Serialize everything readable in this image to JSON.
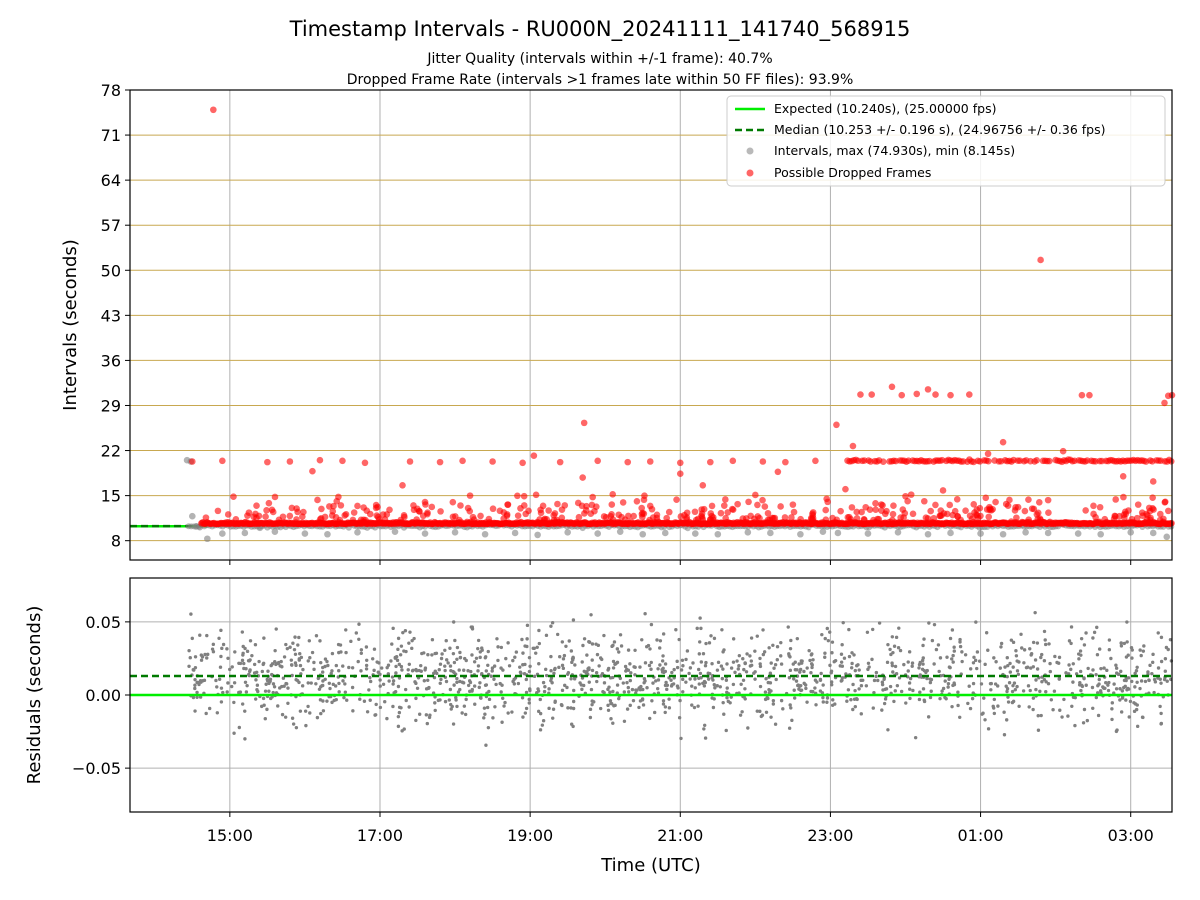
{
  "figure": {
    "title": "Timestamp Intervals - RU000N_20241111_141740_568915",
    "subtitle_1": "Jitter Quality (intervals within +/-1 frame): 40.7%",
    "subtitle_2": "Dropped Frame Rate (intervals >1 frames late within 50 FF files): 93.9%"
  },
  "colors": {
    "expected": "#00ee00",
    "median": "#007a00",
    "intervals": "#808080",
    "dropped": "#ff0000",
    "ygrid_top": "#c8a850",
    "xgrid": "#b0b0b0"
  },
  "chart_data": [
    {
      "type": "scatter",
      "name": "intervals",
      "xlabel": "",
      "ylabel": "Intervals (seconds)",
      "x_unit": "hours since 00:00 on the first day (UTC)",
      "xlim": [
        13.67,
        27.55
      ],
      "ylim": [
        5,
        78
      ],
      "yticks": [
        8,
        15,
        22,
        29,
        36,
        43,
        50,
        57,
        64,
        71,
        78
      ],
      "ytick_labels": [
        "8",
        "15",
        "22",
        "29",
        "36",
        "43",
        "50",
        "57",
        "64",
        "71",
        "78"
      ],
      "grid": true,
      "legend_position": "top-right",
      "expected_value": 10.24,
      "median_value": 10.253,
      "legend": {
        "expected": "Expected (10.240s), (25.00000 fps)",
        "median": "Median (10.253 +/- 0.196 s), (24.96756 +/- 0.36 fps)",
        "intervals": "Intervals, max (74.930s), min (8.145s)",
        "dropped": "Possible Dropped Frames"
      },
      "series": [
        {
          "name": "Intervals, max (74.930s), min (8.145s)",
          "points": [
            [
              14.43,
              20.5
            ],
            [
              14.48,
              20.3
            ],
            [
              14.5,
              11.8
            ],
            [
              14.55,
              10.2
            ],
            [
              14.6,
              10.1
            ],
            [
              14.7,
              8.3
            ],
            [
              14.9,
              9.1
            ],
            [
              15.2,
              9.2
            ],
            [
              15.4,
              10.0
            ],
            [
              15.6,
              9.4
            ],
            [
              16.0,
              9.1
            ],
            [
              16.3,
              9.0
            ],
            [
              16.7,
              9.3
            ],
            [
              17.2,
              9.4
            ],
            [
              17.6,
              9.1
            ],
            [
              18.0,
              9.3
            ],
            [
              18.4,
              9.0
            ],
            [
              18.8,
              9.2
            ],
            [
              19.1,
              8.9
            ],
            [
              19.5,
              9.3
            ],
            [
              19.9,
              9.1
            ],
            [
              20.2,
              9.4
            ],
            [
              20.5,
              9.0
            ],
            [
              20.8,
              9.2
            ],
            [
              21.2,
              9.1
            ],
            [
              21.5,
              9.0
            ],
            [
              21.9,
              9.3
            ],
            [
              22.2,
              9.2
            ],
            [
              22.6,
              9.0
            ],
            [
              22.9,
              9.4
            ],
            [
              23.1,
              9.2
            ],
            [
              23.5,
              9.1
            ],
            [
              23.9,
              9.3
            ],
            [
              24.3,
              9.0
            ],
            [
              24.6,
              9.2
            ],
            [
              25.0,
              9.1
            ],
            [
              25.3,
              9.0
            ],
            [
              25.6,
              9.3
            ],
            [
              25.9,
              9.2
            ],
            [
              26.3,
              9.1
            ],
            [
              26.6,
              9.0
            ],
            [
              27.0,
              9.3
            ],
            [
              27.3,
              9.2
            ],
            [
              27.48,
              8.6
            ]
          ]
        },
        {
          "name": "Possible Dropped Frames",
          "points": [
            [
              14.78,
              74.93
            ],
            [
              14.5,
              20.3
            ],
            [
              14.9,
              20.4
            ],
            [
              15.5,
              20.2
            ],
            [
              15.8,
              20.3
            ],
            [
              16.2,
              20.5
            ],
            [
              16.5,
              20.4
            ],
            [
              16.8,
              20.1
            ],
            [
              17.4,
              20.3
            ],
            [
              17.8,
              20.2
            ],
            [
              18.1,
              20.4
            ],
            [
              18.5,
              20.3
            ],
            [
              18.9,
              20.1
            ],
            [
              19.05,
              21.2
            ],
            [
              19.4,
              20.2
            ],
            [
              19.72,
              26.3
            ],
            [
              19.9,
              20.4
            ],
            [
              20.3,
              20.2
            ],
            [
              20.6,
              20.3
            ],
            [
              21.0,
              20.1
            ],
            [
              21.4,
              20.2
            ],
            [
              21.7,
              20.4
            ],
            [
              22.1,
              20.3
            ],
            [
              22.4,
              20.2
            ],
            [
              22.8,
              20.4
            ],
            [
              23.08,
              26.0
            ],
            [
              23.3,
              22.7
            ],
            [
              23.4,
              30.7
            ],
            [
              23.55,
              30.7
            ],
            [
              23.82,
              31.9
            ],
            [
              23.95,
              30.6
            ],
            [
              24.15,
              30.8
            ],
            [
              24.3,
              31.5
            ],
            [
              24.4,
              30.7
            ],
            [
              24.6,
              30.6
            ],
            [
              24.85,
              30.7
            ],
            [
              25.1,
              21.5
            ],
            [
              25.3,
              23.3
            ],
            [
              25.8,
              51.6
            ],
            [
              26.1,
              21.9
            ],
            [
              26.35,
              30.6
            ],
            [
              26.45,
              30.6
            ],
            [
              27.45,
              29.4
            ],
            [
              27.5,
              30.5
            ],
            [
              27.55,
              30.6
            ],
            [
              16.1,
              18.8
            ],
            [
              16.7,
              13.4
            ],
            [
              17.3,
              16.6
            ],
            [
              17.6,
              14.0
            ],
            [
              18.2,
              15.0
            ],
            [
              18.7,
              13.6
            ],
            [
              19.7,
              17.8
            ],
            [
              20.1,
              15.2
            ],
            [
              20.6,
              13.4
            ],
            [
              21.0,
              18.4
            ],
            [
              21.3,
              16.6
            ],
            [
              21.6,
              14.4
            ],
            [
              22.0,
              15.1
            ],
            [
              22.3,
              18.7
            ],
            [
              22.5,
              13.6
            ],
            [
              22.95,
              14.5
            ],
            [
              23.2,
              16.0
            ],
            [
              23.6,
              13.8
            ],
            [
              24.0,
              14.9
            ],
            [
              24.5,
              15.8
            ],
            [
              25.2,
              14.0
            ],
            [
              25.5,
              13.2
            ],
            [
              25.9,
              14.3
            ],
            [
              26.4,
              12.7
            ],
            [
              26.8,
              14.4
            ],
            [
              27.1,
              13.6
            ],
            [
              27.3,
              17.2
            ],
            [
              26.9,
              18.0
            ]
          ]
        }
      ]
    },
    {
      "type": "scatter",
      "name": "residuals",
      "xlabel": "Time (UTC)",
      "ylabel": "Residuals (seconds)",
      "xlim": [
        13.67,
        27.55
      ],
      "ylim": [
        -0.08,
        0.08
      ],
      "yticks": [
        -0.05,
        0.0,
        0.05
      ],
      "ytick_labels": [
        "−0.05",
        "0.00",
        "0.05"
      ],
      "xticks": [
        15,
        17,
        19,
        21,
        23,
        25,
        27
      ],
      "xtick_labels": [
        "15:00",
        "17:00",
        "19:00",
        "21:00",
        "23:00",
        "01:00",
        "03:00"
      ],
      "grid": true,
      "expected_value": 0.0,
      "median_value": 0.013,
      "residual_range": [
        -0.08,
        0.08
      ],
      "start_hour": 14.45,
      "end_hour": 27.55,
      "point_count": 1600
    }
  ]
}
